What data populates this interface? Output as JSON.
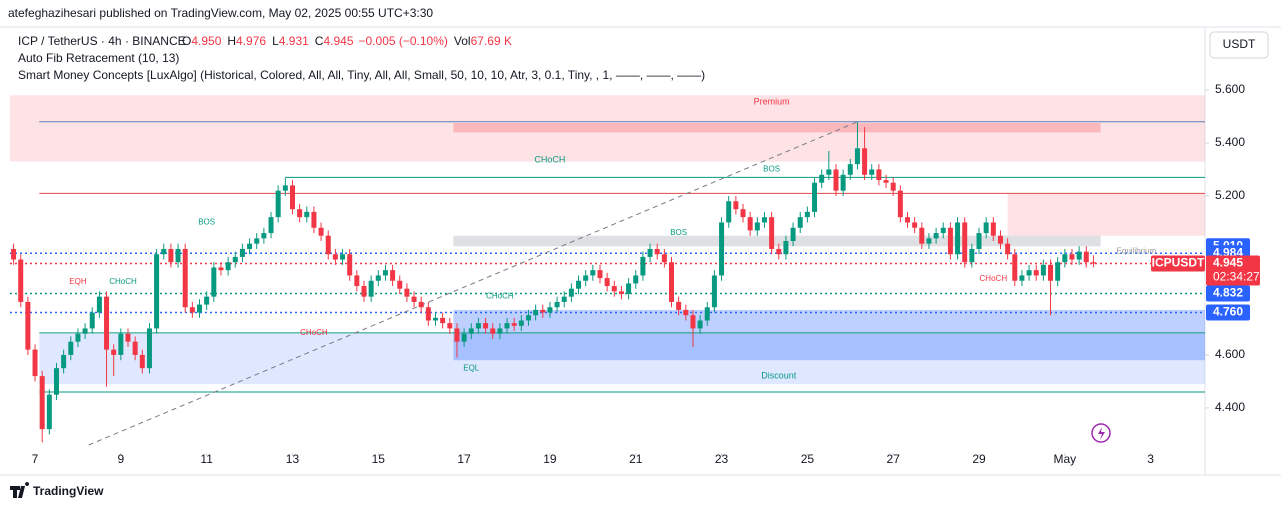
{
  "chart_data": {
    "type": "candlestick",
    "published": "atefeghazihesari published on TradingView.com, May 02, 2025 00:55 UTC+3:30",
    "symbol": "ICP / TetherUS · 4h · BINANCE",
    "ohlc_legend": [
      {
        "key": "O",
        "value": "4.950"
      },
      {
        "key": "H",
        "value": "4.976"
      },
      {
        "key": "L",
        "value": "4.931"
      },
      {
        "key": "C",
        "value": "4.945"
      }
    ],
    "change": "−0.005 (−0.10%)",
    "volume_key": "Vol",
    "volume": "67.69 K",
    "indicators": [
      "Auto Fib Retracement (10, 13)",
      "Smart Money Concepts [LuxAlgo] (Historical, Colored, All, All, Tiny, All, All, Small, 50, 10, 10, Atr, 3, 0.1, Tiny, , 1, ——, ——, ——)"
    ],
    "currency": "USDT",
    "brand": "TradingView",
    "up_color": "#089981",
    "down_color": "#f23645",
    "xlim": [
      -0.5,
      166.6
    ],
    "ylim": [
      4.26,
      5.834
    ],
    "xticks": [
      {
        "value": 3,
        "label": "7"
      },
      {
        "value": 15,
        "label": "9"
      },
      {
        "value": 27,
        "label": "11"
      },
      {
        "value": 39,
        "label": "13"
      },
      {
        "value": 51,
        "label": "15"
      },
      {
        "value": 63,
        "label": "17"
      },
      {
        "value": 75,
        "label": "19"
      },
      {
        "value": 87,
        "label": "21"
      },
      {
        "value": 99,
        "label": "23"
      },
      {
        "value": 111,
        "label": "25"
      },
      {
        "value": 123,
        "label": "27"
      },
      {
        "value": 135,
        "label": "29"
      },
      {
        "value": 147,
        "label": "May"
      },
      {
        "value": 159,
        "label": "3"
      }
    ],
    "yticks": [
      {
        "value": 5.6,
        "label": "5.600"
      },
      {
        "value": 5.4,
        "label": "5.400"
      },
      {
        "value": 5.2,
        "label": "5.200"
      },
      {
        "value": 4.6,
        "label": "4.600"
      },
      {
        "value": 4.4,
        "label": "4.400"
      }
    ],
    "zones": [
      {
        "label": "Premium",
        "x0": -0.5,
        "x1": 166.6,
        "top": 5.58,
        "bottom": 5.33,
        "color": "#f23645",
        "opacity": 0.14
      },
      {
        "x0": 61.5,
        "x1": 152,
        "top": 5.475,
        "bottom": 5.44,
        "color": "#f23645",
        "opacity": 0.25
      },
      {
        "x0": 139,
        "x1": 166.6,
        "top": 5.21,
        "bottom": 5.05,
        "color": "#f23645",
        "opacity": 0.14
      },
      {
        "x0": 61.5,
        "x1": 152,
        "top": 5.05,
        "bottom": 5.01,
        "color": "#9598a1",
        "opacity": 0.3
      },
      {
        "label": "Discount",
        "x0": 3.6,
        "x1": 166.6,
        "top": 4.68,
        "bottom": 4.49,
        "color": "#2962ff",
        "opacity": 0.15
      },
      {
        "x0": 61.5,
        "x1": 166.6,
        "top": 4.77,
        "bottom": 4.58,
        "color": "#2962ff",
        "opacity": 0.3
      }
    ],
    "levels": [
      {
        "value": 5.48,
        "x0": 3.6,
        "color": "#5b7fb8",
        "style": "solid"
      },
      {
        "value": 5.27,
        "x0": 38,
        "color": "#089981",
        "style": "solid"
      },
      {
        "value": 5.21,
        "x0": 3.6,
        "color": "#e04a4a",
        "style": "solid"
      },
      {
        "value": 4.984,
        "x0": -0.5,
        "color": "#2962ff",
        "style": "dotted"
      },
      {
        "value": 4.945,
        "x0": -0.5,
        "color": "#f23645",
        "style": "dotted"
      },
      {
        "value": 4.832,
        "x0": -0.5,
        "color": "#089981",
        "style": "dotted"
      },
      {
        "value": 4.76,
        "x0": -0.5,
        "color": "#2962ff",
        "style": "dotted"
      },
      {
        "value": 4.683,
        "x0": 3.6,
        "color": "#089981",
        "style": "solid"
      },
      {
        "value": 4.46,
        "x0": 3.6,
        "color": "#089981",
        "style": "solid"
      }
    ],
    "trendline": {
      "x": [
        10.5,
        118
      ],
      "y": [
        4.26,
        5.48
      ],
      "color": "#787b86"
    },
    "annotations": [
      {
        "text": "Premium",
        "x": 106,
        "y": 5.555,
        "color": "#f23645"
      },
      {
        "text": "CHoCH",
        "x": 75,
        "y": 5.336,
        "color": "#089981"
      },
      {
        "text": "BOS",
        "x": 27,
        "y": 5.1,
        "color": "#089981",
        "small": true
      },
      {
        "text": "BOS",
        "x": 93,
        "y": 5.06,
        "color": "#089981",
        "small": true
      },
      {
        "text": "BOS",
        "x": 106,
        "y": 5.3,
        "color": "#089981",
        "small": true
      },
      {
        "text": "EQH",
        "x": 9,
        "y": 4.875,
        "color": "#f23645",
        "small": true
      },
      {
        "text": "CHoCH",
        "x": 15.3,
        "y": 4.875,
        "color": "#089981",
        "small": true
      },
      {
        "text": "CHoCH",
        "x": 68,
        "y": 4.82,
        "color": "#089981",
        "small": true
      },
      {
        "text": "CHoCH",
        "x": 42,
        "y": 4.683,
        "color": "#f23645",
        "small": true
      },
      {
        "text": "EQL",
        "x": 64,
        "y": 4.55,
        "color": "#089981",
        "small": true
      },
      {
        "text": "Discount",
        "x": 107,
        "y": 4.52,
        "color": "#089981"
      },
      {
        "text": "Equilibrium",
        "x": 157,
        "y": 4.99,
        "color": "#9598a1",
        "small": true
      },
      {
        "text": "CHoCH",
        "x": 137,
        "y": 4.887,
        "color": "#f23645",
        "small": true
      }
    ],
    "price_labels": [
      {
        "value": 5.01,
        "label": "5.010",
        "color": "#2962ff"
      },
      {
        "value": 4.984,
        "label": "4.984",
        "color": "#2962ff"
      },
      {
        "value": 4.832,
        "label": "4.832",
        "color": "#2962ff"
      },
      {
        "value": 4.76,
        "label": "4.760",
        "color": "#2962ff"
      }
    ],
    "last_price": {
      "value": 4.945,
      "label": "4.945",
      "name": "ICPUSDT",
      "countdown": "02:34:27",
      "color": "#f23645"
    },
    "candles": [
      [
        5.0,
        5.02,
        4.94,
        4.96
      ],
      [
        4.96,
        4.98,
        4.78,
        4.8
      ],
      [
        4.8,
        4.82,
        4.6,
        4.62
      ],
      [
        4.62,
        4.64,
        4.5,
        4.52
      ],
      [
        4.52,
        4.54,
        4.27,
        4.32
      ],
      [
        4.32,
        4.47,
        4.3,
        4.45
      ],
      [
        4.45,
        4.57,
        4.43,
        4.55
      ],
      [
        4.55,
        4.62,
        4.53,
        4.6
      ],
      [
        4.6,
        4.67,
        4.58,
        4.65
      ],
      [
        4.65,
        4.7,
        4.63,
        4.68
      ],
      [
        4.68,
        4.72,
        4.66,
        4.7
      ],
      [
        4.7,
        4.78,
        4.68,
        4.76
      ],
      [
        4.76,
        4.84,
        4.74,
        4.82
      ],
      [
        4.82,
        4.84,
        4.48,
        4.62
      ],
      [
        4.62,
        4.64,
        4.52,
        4.6
      ],
      [
        4.6,
        4.7,
        4.58,
        4.68
      ],
      [
        4.68,
        4.7,
        4.63,
        4.65
      ],
      [
        4.65,
        4.67,
        4.58,
        4.6
      ],
      [
        4.6,
        4.62,
        4.53,
        4.55
      ],
      [
        4.55,
        4.72,
        4.53,
        4.7
      ],
      [
        4.7,
        5.0,
        4.68,
        4.98
      ],
      [
        4.98,
        5.02,
        4.96,
        5.0
      ],
      [
        5.0,
        5.02,
        4.93,
        4.95
      ],
      [
        4.95,
        5.02,
        4.93,
        5.0
      ],
      [
        5.0,
        5.02,
        4.76,
        4.78
      ],
      [
        4.78,
        4.8,
        4.74,
        4.76
      ],
      [
        4.76,
        4.81,
        4.74,
        4.79
      ],
      [
        4.79,
        4.84,
        4.77,
        4.82
      ],
      [
        4.82,
        4.95,
        4.8,
        4.93
      ],
      [
        4.93,
        4.95,
        4.9,
        4.92
      ],
      [
        4.92,
        4.97,
        4.9,
        4.95
      ],
      [
        4.95,
        4.99,
        4.93,
        4.97
      ],
      [
        4.97,
        5.02,
        4.95,
        5.0
      ],
      [
        5.0,
        5.04,
        4.98,
        5.02
      ],
      [
        5.02,
        5.06,
        5.0,
        5.04
      ],
      [
        5.04,
        5.08,
        5.02,
        5.06
      ],
      [
        5.06,
        5.14,
        5.04,
        5.12
      ],
      [
        5.12,
        5.24,
        5.1,
        5.22
      ],
      [
        5.22,
        5.27,
        5.2,
        5.24
      ],
      [
        5.24,
        5.26,
        5.13,
        5.15
      ],
      [
        5.15,
        5.17,
        5.1,
        5.12
      ],
      [
        5.12,
        5.16,
        5.1,
        5.14
      ],
      [
        5.14,
        5.16,
        5.06,
        5.08
      ],
      [
        5.08,
        5.1,
        5.03,
        5.05
      ],
      [
        5.05,
        5.07,
        4.96,
        4.98
      ],
      [
        4.98,
        5.0,
        4.94,
        4.96
      ],
      [
        4.96,
        5.0,
        4.94,
        4.98
      ],
      [
        4.98,
        5.0,
        4.88,
        4.9
      ],
      [
        4.9,
        4.92,
        4.84,
        4.86
      ],
      [
        4.86,
        4.88,
        4.8,
        4.82
      ],
      [
        4.82,
        4.9,
        4.8,
        4.88
      ],
      [
        4.88,
        4.92,
        4.86,
        4.9
      ],
      [
        4.9,
        4.94,
        4.88,
        4.92
      ],
      [
        4.92,
        4.94,
        4.86,
        4.88
      ],
      [
        4.88,
        4.9,
        4.83,
        4.85
      ],
      [
        4.85,
        4.87,
        4.8,
        4.82
      ],
      [
        4.82,
        4.84,
        4.78,
        4.8
      ],
      [
        4.8,
        4.82,
        4.76,
        4.78
      ],
      [
        4.78,
        4.8,
        4.71,
        4.73
      ],
      [
        4.73,
        4.76,
        4.71,
        4.74
      ],
      [
        4.74,
        4.76,
        4.7,
        4.72
      ],
      [
        4.72,
        4.74,
        4.68,
        4.7
      ],
      [
        4.7,
        4.72,
        4.59,
        4.65
      ],
      [
        4.65,
        4.7,
        4.63,
        4.68
      ],
      [
        4.68,
        4.72,
        4.66,
        4.7
      ],
      [
        4.7,
        4.74,
        4.68,
        4.72
      ],
      [
        4.72,
        4.74,
        4.68,
        4.7
      ],
      [
        4.7,
        4.72,
        4.66,
        4.68
      ],
      [
        4.68,
        4.72,
        4.66,
        4.7
      ],
      [
        4.7,
        4.74,
        4.68,
        4.72
      ],
      [
        4.72,
        4.74,
        4.69,
        4.71
      ],
      [
        4.71,
        4.75,
        4.69,
        4.73
      ],
      [
        4.73,
        4.77,
        4.71,
        4.75
      ],
      [
        4.75,
        4.79,
        4.73,
        4.77
      ],
      [
        4.77,
        4.79,
        4.74,
        4.76
      ],
      [
        4.76,
        4.8,
        4.74,
        4.78
      ],
      [
        4.78,
        4.82,
        4.76,
        4.8
      ],
      [
        4.8,
        4.84,
        4.78,
        4.82
      ],
      [
        4.82,
        4.87,
        4.8,
        4.85
      ],
      [
        4.85,
        4.9,
        4.83,
        4.88
      ],
      [
        4.88,
        4.92,
        4.86,
        4.9
      ],
      [
        4.9,
        4.94,
        4.88,
        4.92
      ],
      [
        4.92,
        4.94,
        4.87,
        4.89
      ],
      [
        4.89,
        4.91,
        4.84,
        4.86
      ],
      [
        4.86,
        4.88,
        4.82,
        4.84
      ],
      [
        4.84,
        4.86,
        4.81,
        4.83
      ],
      [
        4.83,
        4.89,
        4.81,
        4.87
      ],
      [
        4.87,
        4.92,
        4.85,
        4.9
      ],
      [
        4.9,
        4.99,
        4.88,
        4.97
      ],
      [
        4.97,
        5.02,
        4.95,
        5.0
      ],
      [
        5.0,
        5.02,
        4.96,
        4.98
      ],
      [
        4.98,
        5.0,
        4.93,
        4.95
      ],
      [
        4.95,
        4.97,
        4.78,
        4.8
      ],
      [
        4.8,
        4.82,
        4.75,
        4.77
      ],
      [
        4.77,
        4.79,
        4.73,
        4.75
      ],
      [
        4.75,
        4.77,
        4.63,
        4.7
      ],
      [
        4.7,
        4.75,
        4.68,
        4.73
      ],
      [
        4.73,
        4.8,
        4.71,
        4.78
      ],
      [
        4.78,
        4.92,
        4.76,
        4.9
      ],
      [
        4.9,
        5.12,
        4.88,
        5.1
      ],
      [
        5.1,
        5.2,
        5.08,
        5.18
      ],
      [
        5.18,
        5.2,
        5.13,
        5.15
      ],
      [
        5.15,
        5.17,
        5.1,
        5.12
      ],
      [
        5.12,
        5.14,
        5.05,
        5.07
      ],
      [
        5.07,
        5.12,
        5.05,
        5.1
      ],
      [
        5.1,
        5.14,
        5.08,
        5.12
      ],
      [
        5.12,
        5.14,
        4.98,
        5.0
      ],
      [
        5.0,
        5.02,
        4.96,
        4.98
      ],
      [
        4.98,
        5.05,
        4.96,
        5.03
      ],
      [
        5.03,
        5.1,
        5.01,
        5.08
      ],
      [
        5.08,
        5.14,
        5.06,
        5.12
      ],
      [
        5.12,
        5.16,
        5.1,
        5.14
      ],
      [
        5.14,
        5.27,
        5.12,
        5.25
      ],
      [
        5.25,
        5.3,
        5.23,
        5.28
      ],
      [
        5.28,
        5.37,
        5.26,
        5.3
      ],
      [
        5.3,
        5.32,
        5.2,
        5.22
      ],
      [
        5.22,
        5.3,
        5.2,
        5.28
      ],
      [
        5.28,
        5.34,
        5.26,
        5.32
      ],
      [
        5.32,
        5.48,
        5.3,
        5.38
      ],
      [
        5.38,
        5.46,
        5.26,
        5.28
      ],
      [
        5.28,
        5.32,
        5.26,
        5.3
      ],
      [
        5.3,
        5.32,
        5.24,
        5.26
      ],
      [
        5.26,
        5.28,
        5.23,
        5.25
      ],
      [
        5.25,
        5.27,
        5.2,
        5.22
      ],
      [
        5.22,
        5.24,
        5.1,
        5.12
      ],
      [
        5.12,
        5.14,
        5.08,
        5.1
      ],
      [
        5.1,
        5.12,
        5.06,
        5.08
      ],
      [
        5.08,
        5.1,
        5.0,
        5.02
      ],
      [
        5.02,
        5.06,
        5.0,
        5.04
      ],
      [
        5.04,
        5.08,
        5.02,
        5.06
      ],
      [
        5.06,
        5.1,
        5.04,
        5.08
      ],
      [
        5.08,
        5.1,
        4.96,
        4.98
      ],
      [
        4.98,
        5.12,
        4.96,
        5.1
      ],
      [
        5.1,
        5.12,
        4.93,
        4.95
      ],
      [
        4.95,
        5.02,
        4.93,
        5.0
      ],
      [
        5.0,
        5.08,
        4.98,
        5.06
      ],
      [
        5.06,
        5.12,
        5.04,
        5.1
      ],
      [
        5.1,
        5.12,
        5.03,
        5.05
      ],
      [
        5.05,
        5.07,
        5.0,
        5.02
      ],
      [
        5.02,
        5.04,
        4.96,
        4.98
      ],
      [
        4.98,
        5.0,
        4.86,
        4.88
      ],
      [
        4.88,
        4.92,
        4.86,
        4.9
      ],
      [
        4.9,
        4.94,
        4.88,
        4.92
      ],
      [
        4.92,
        4.94,
        4.88,
        4.9
      ],
      [
        4.9,
        4.96,
        4.88,
        4.94
      ],
      [
        4.94,
        4.96,
        4.75,
        4.88
      ],
      [
        4.88,
        4.97,
        4.86,
        4.95
      ],
      [
        4.95,
        5.0,
        4.93,
        4.98
      ],
      [
        4.98,
        5.0,
        4.94,
        4.96
      ],
      [
        4.96,
        5.01,
        4.94,
        4.99
      ],
      [
        4.99,
        5.01,
        4.93,
        4.95
      ],
      [
        4.95,
        4.976,
        4.931,
        4.945
      ]
    ]
  }
}
